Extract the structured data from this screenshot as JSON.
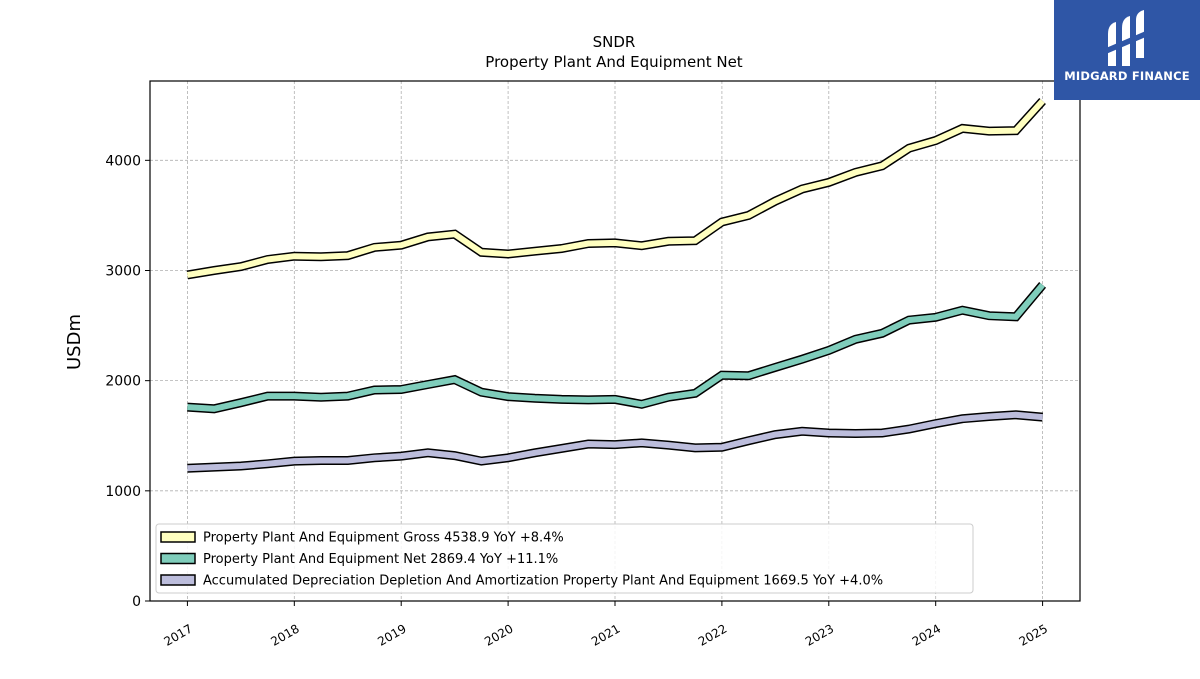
{
  "chart_data": {
    "type": "line",
    "title": "SNDR",
    "subtitle": "Property Plant And Equipment Net",
    "xlabel": "",
    "ylabel": "USDm",
    "ylim": [
      0,
      4720
    ],
    "xlim": [
      2016.65,
      2025.35
    ],
    "yticks": [
      0,
      1000,
      2000,
      3000,
      4000
    ],
    "xticks": [
      2017,
      2018,
      2019,
      2020,
      2021,
      2022,
      2023,
      2024,
      2025
    ],
    "grid": true,
    "legend_position": "lower-left",
    "x": [
      2017.0,
      2017.25,
      2017.5,
      2017.75,
      2018.0,
      2018.25,
      2018.5,
      2018.75,
      2019.0,
      2019.25,
      2019.5,
      2019.75,
      2020.0,
      2020.25,
      2020.5,
      2020.75,
      2021.0,
      2021.25,
      2021.5,
      2021.75,
      2022.0,
      2022.25,
      2022.5,
      2022.75,
      2023.0,
      2023.25,
      2023.5,
      2023.75,
      2024.0,
      2024.25,
      2024.5,
      2024.75,
      2025.0
    ],
    "series": [
      {
        "name": "Property Plant And Equipment Gross",
        "legend_label": "Property Plant And Equipment Gross  4538.9 YoY +8.4%",
        "color": "#ffffc0",
        "values": [
          2960,
          3000,
          3035,
          3100,
          3130,
          3125,
          3135,
          3210,
          3230,
          3305,
          3330,
          3165,
          3150,
          3175,
          3200,
          3245,
          3250,
          3225,
          3265,
          3270,
          3440,
          3500,
          3630,
          3740,
          3800,
          3890,
          3950,
          4110,
          4180,
          4290,
          4265,
          4270,
          4538.9
        ]
      },
      {
        "name": "Property Plant And Equipment Net",
        "legend_label": "Property Plant And Equipment Net  2869.4 YoY +11.1%",
        "color": "#7fcdbb",
        "values": [
          1760,
          1745,
          1800,
          1860,
          1860,
          1850,
          1860,
          1915,
          1920,
          1965,
          2010,
          1895,
          1855,
          1840,
          1830,
          1825,
          1830,
          1785,
          1850,
          1885,
          2050,
          2045,
          2120,
          2195,
          2275,
          2375,
          2430,
          2550,
          2575,
          2640,
          2590,
          2580,
          2869.4
        ]
      },
      {
        "name": "Accumulated Depreciation Depletion And Amortization Property Plant And Equipment",
        "legend_label": "Accumulated Depreciation Depletion And Amortization Property Plant And Equipment  1669.5 YoY +4.0%",
        "color": "#bcbddc",
        "values": [
          1205,
          1215,
          1225,
          1245,
          1270,
          1275,
          1275,
          1300,
          1315,
          1345,
          1320,
          1270,
          1300,
          1345,
          1385,
          1425,
          1420,
          1435,
          1415,
          1390,
          1395,
          1455,
          1510,
          1540,
          1525,
          1520,
          1525,
          1560,
          1610,
          1655,
          1675,
          1690,
          1669.5
        ]
      }
    ]
  },
  "brand": {
    "name": "MIDGARD FINANCE",
    "color": "#2f56a6"
  }
}
